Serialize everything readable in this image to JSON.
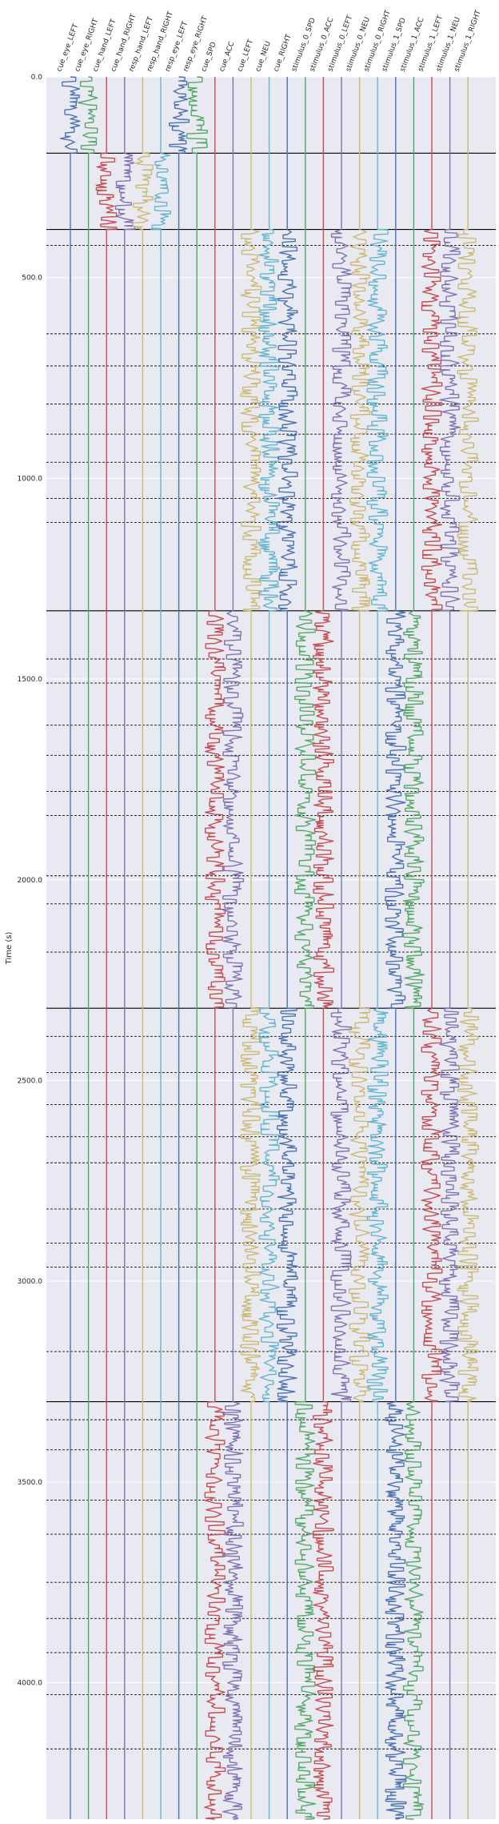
{
  "chart_data": {
    "type": "line",
    "title": "",
    "xlabel": "",
    "ylabel": "Time (s)",
    "ylim": [
      0,
      4340
    ],
    "y_inverted": true,
    "y_ticks": [
      "0.0",
      "500.0",
      "1000.0",
      "1500.0",
      "2000.0",
      "2500.0",
      "3000.0",
      "3500.0",
      "4000.0"
    ],
    "y_tick_values": [
      0,
      500,
      1000,
      1500,
      2000,
      2500,
      3000,
      3500,
      4000
    ],
    "background": "#e9e9f1",
    "grid": true,
    "channels": [
      {
        "name": "cue_eye_LEFT",
        "color": "#4c72b0",
        "active": [
          [
            0,
            190
          ]
        ]
      },
      {
        "name": "cue_eye_RIGHT",
        "color": "#55a868",
        "active": [
          [
            0,
            190
          ]
        ]
      },
      {
        "name": "cue_hand_LEFT",
        "color": "#c44e52",
        "active": [
          [
            190,
            380
          ]
        ]
      },
      {
        "name": "cue_hand_RIGHT",
        "color": "#8172b2",
        "active": [
          [
            190,
            380
          ]
        ]
      },
      {
        "name": "resp_hand_LEFT",
        "color": "#ccb974",
        "active": [
          [
            190,
            380
          ]
        ]
      },
      {
        "name": "resp_hand_RIGHT",
        "color": "#64b5cd",
        "active": [
          [
            190,
            380
          ]
        ]
      },
      {
        "name": "resp_eye_LEFT",
        "color": "#4c72b0",
        "active": [
          [
            0,
            190
          ]
        ]
      },
      {
        "name": "resp_eye_RIGHT",
        "color": "#55a868",
        "active": [
          [
            0,
            190
          ]
        ]
      },
      {
        "name": "cue_SPD",
        "color": "#c44e52",
        "active": [
          [
            1330,
            2320
          ],
          [
            3300,
            4340
          ]
        ]
      },
      {
        "name": "cue_ACC",
        "color": "#8172b2",
        "active": [
          [
            1330,
            2320
          ],
          [
            3300,
            4340
          ]
        ]
      },
      {
        "name": "cue_LEFT",
        "color": "#ccb974",
        "active": [
          [
            380,
            1330
          ],
          [
            2320,
            3300
          ]
        ]
      },
      {
        "name": "cue_NEU",
        "color": "#64b5cd",
        "active": [
          [
            380,
            1330
          ],
          [
            2320,
            3300
          ]
        ]
      },
      {
        "name": "cue_RIGHT",
        "color": "#4c72b0",
        "active": [
          [
            380,
            1330
          ],
          [
            2320,
            3300
          ]
        ]
      },
      {
        "name": "stimulus_0_SPD",
        "color": "#55a868",
        "active": [
          [
            1330,
            2320
          ],
          [
            3300,
            4340
          ]
        ]
      },
      {
        "name": "stimulus_0_ACC",
        "color": "#c44e52",
        "active": [
          [
            1330,
            2320
          ],
          [
            3300,
            4340
          ]
        ]
      },
      {
        "name": "stimulus_0_LEFT",
        "color": "#8172b2",
        "active": [
          [
            380,
            1330
          ],
          [
            2320,
            3300
          ]
        ]
      },
      {
        "name": "stimulus_0_NEU",
        "color": "#ccb974",
        "active": [
          [
            380,
            1330
          ],
          [
            2320,
            3300
          ]
        ]
      },
      {
        "name": "stimulus_0_RIGHT",
        "color": "#64b5cd",
        "active": [
          [
            380,
            1330
          ],
          [
            2320,
            3300
          ]
        ]
      },
      {
        "name": "stimulus_1_SPD",
        "color": "#4c72b0",
        "active": [
          [
            1330,
            2320
          ],
          [
            3300,
            4340
          ]
        ]
      },
      {
        "name": "stimulus_1_ACC",
        "color": "#55a868",
        "active": [
          [
            1330,
            2320
          ],
          [
            3300,
            4340
          ]
        ]
      },
      {
        "name": "stimulus_1_LEFT",
        "color": "#c44e52",
        "active": [
          [
            380,
            1330
          ],
          [
            2320,
            3300
          ]
        ]
      },
      {
        "name": "stimulus_1_NEU",
        "color": "#8172b2",
        "active": [
          [
            380,
            1330
          ],
          [
            2320,
            3300
          ]
        ]
      },
      {
        "name": "stimulus_1_RIGHT",
        "color": "#ccb974",
        "active": [
          [
            380,
            1330
          ],
          [
            2320,
            3300
          ]
        ]
      }
    ],
    "block_boundaries": [
      190,
      380,
      1330,
      2320,
      3300
    ],
    "run_boundaries": [
      420,
      640,
      720,
      815,
      890,
      960,
      1050,
      1110,
      1450,
      1510,
      1615,
      1690,
      1780,
      1840,
      1990,
      2060,
      2180,
      2390,
      2480,
      2560,
      2640,
      2705,
      2820,
      2905,
      2965,
      3175,
      3345,
      3420,
      3545,
      3630,
      3750,
      3840,
      3925,
      4030,
      4165
    ]
  }
}
